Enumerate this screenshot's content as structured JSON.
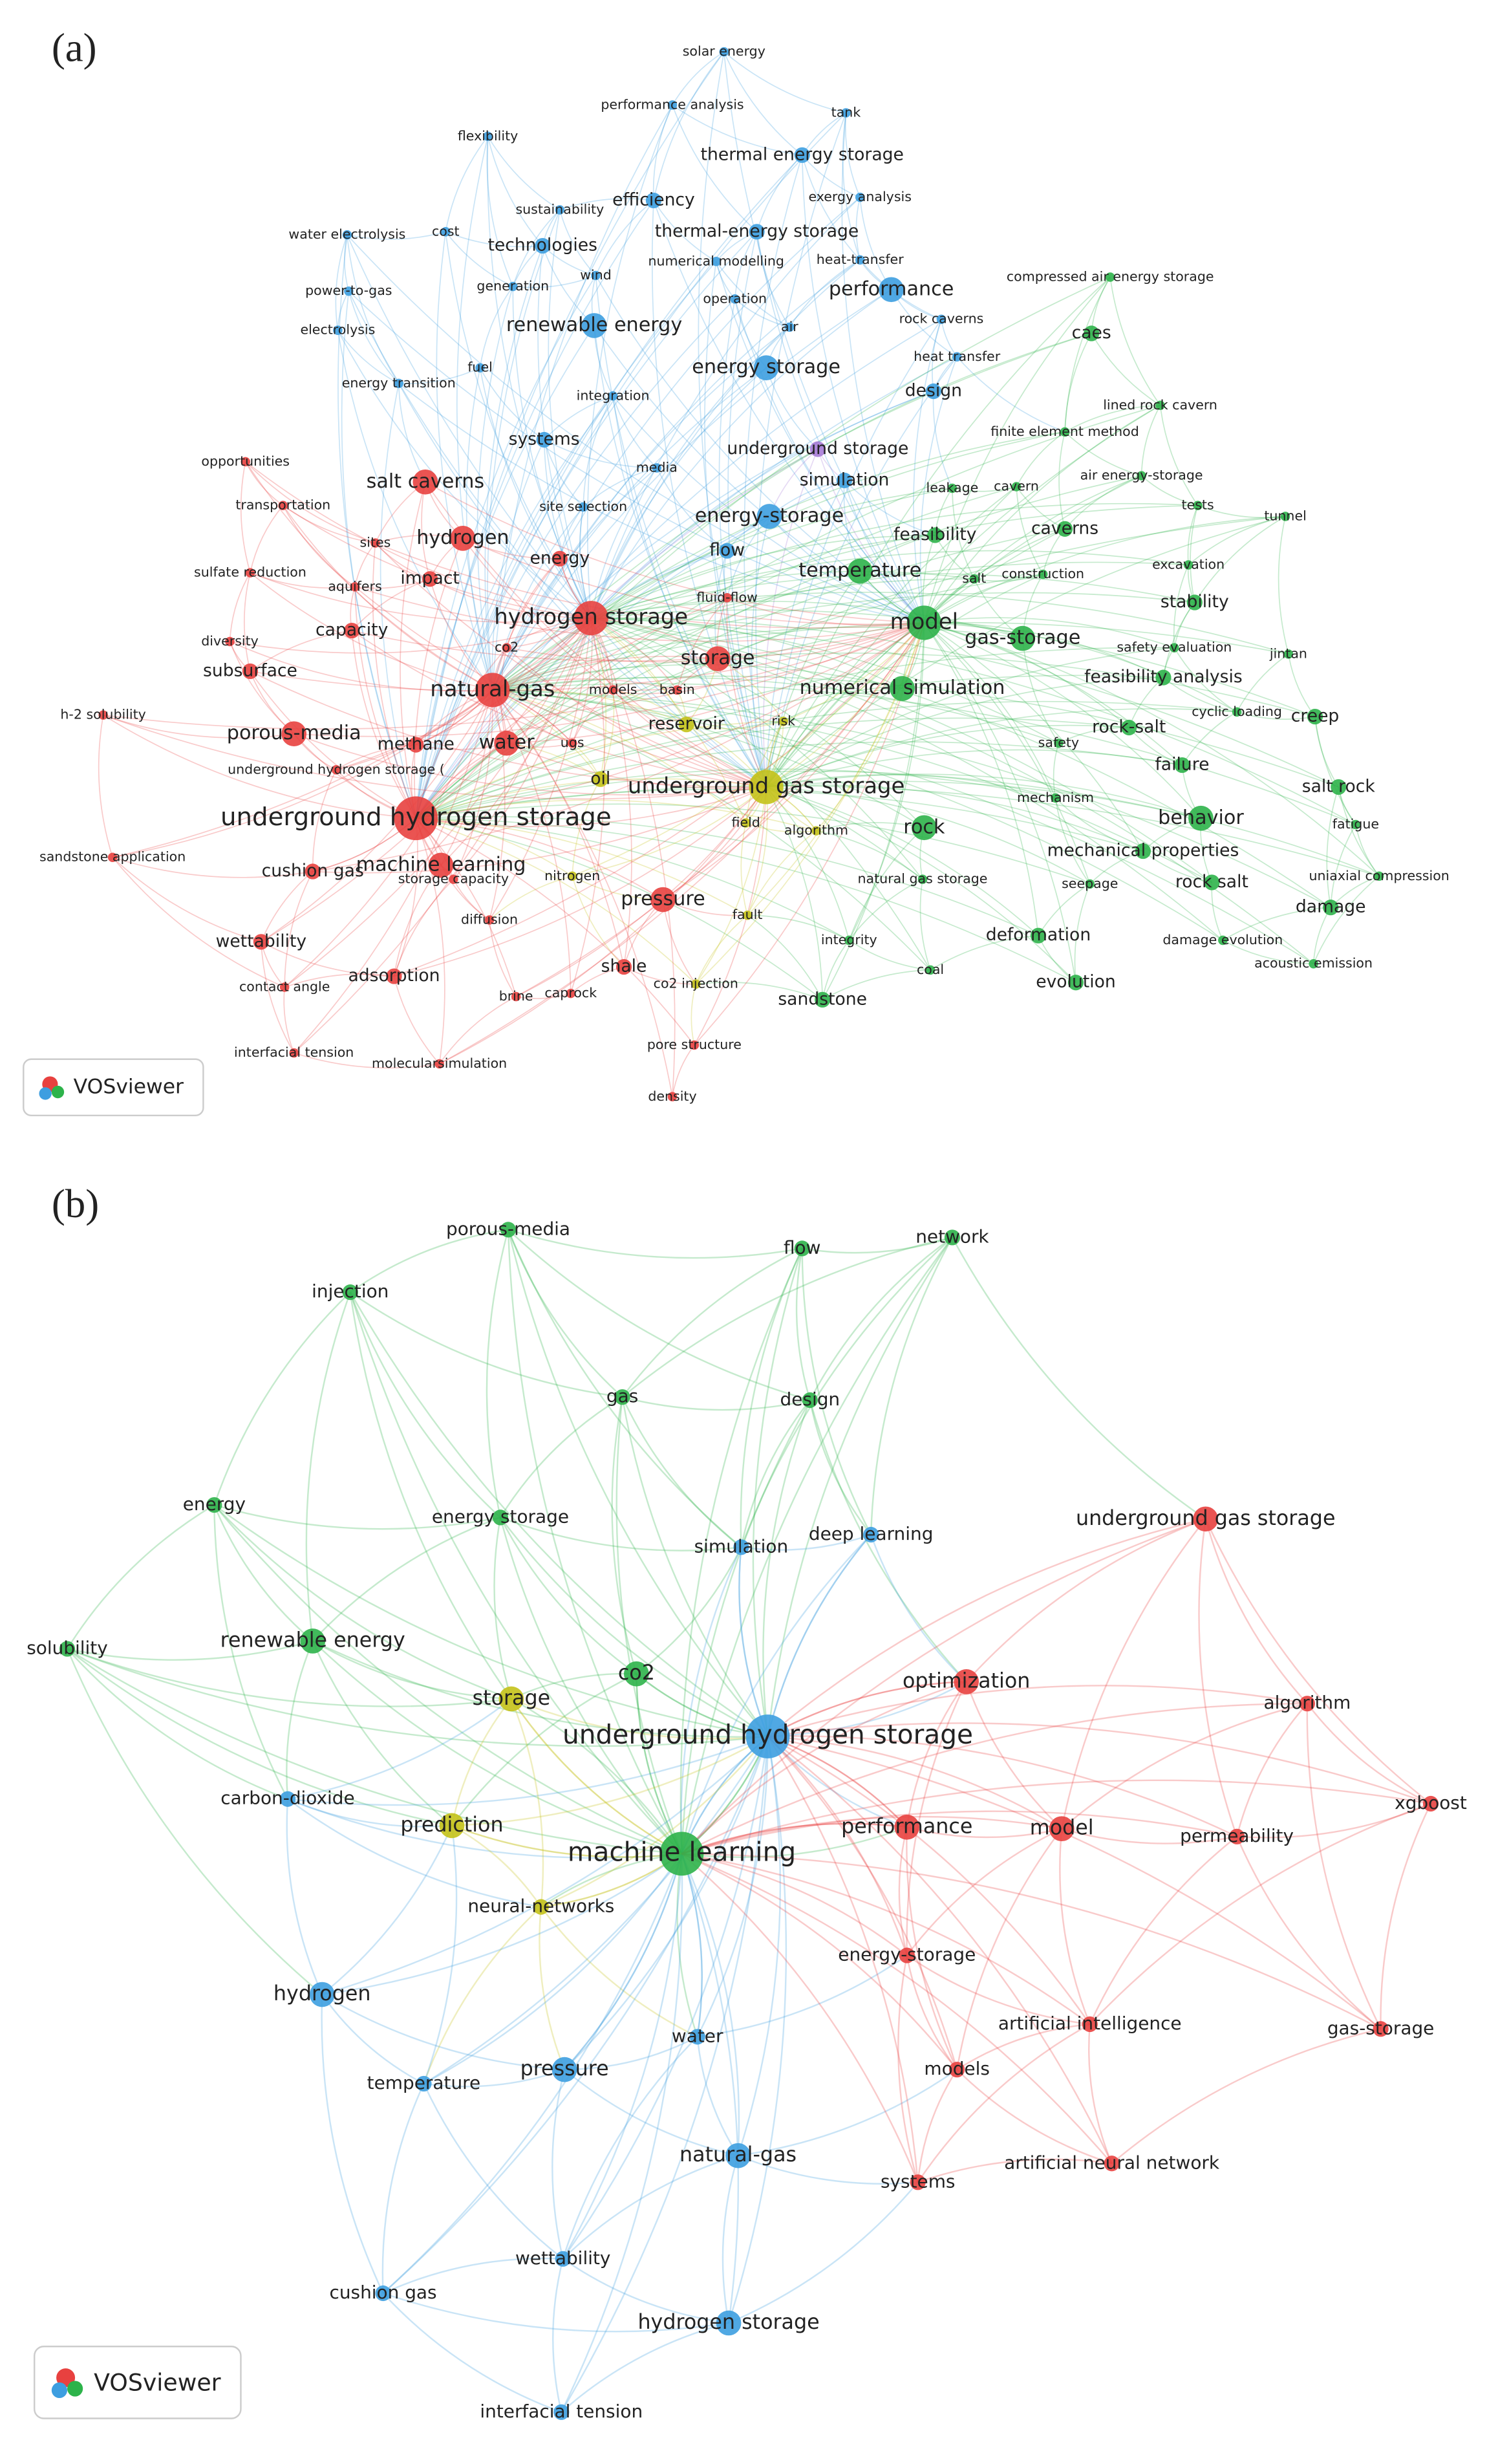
{
  "panels": [
    {
      "label": "(a)",
      "logo": "VOSviewer",
      "nodes": [
        {
          "label": "solar energy"
        },
        {
          "label": "performance analysis"
        },
        {
          "label": "tank"
        },
        {
          "label": "flexibility"
        },
        {
          "label": "thermal energy storage"
        },
        {
          "label": "exergy analysis"
        },
        {
          "label": "efficiency"
        },
        {
          "label": "sustainability"
        },
        {
          "label": "water electrolysis"
        },
        {
          "label": "cost"
        },
        {
          "label": "thermal-energy storage"
        },
        {
          "label": "technologies"
        },
        {
          "label": "numerical modelling"
        },
        {
          "label": "heat-transfer"
        },
        {
          "label": "power-to-gas"
        },
        {
          "label": "generation"
        },
        {
          "label": "wind"
        },
        {
          "label": "performance"
        },
        {
          "label": "operation"
        },
        {
          "label": "electrolysis"
        },
        {
          "label": "renewable energy"
        },
        {
          "label": "air"
        },
        {
          "label": "rock caverns"
        },
        {
          "label": "energy storage"
        },
        {
          "label": "heat transfer"
        },
        {
          "label": "design"
        },
        {
          "label": "energy transition"
        },
        {
          "label": "fuel"
        },
        {
          "label": "integration"
        },
        {
          "label": "systems"
        },
        {
          "label": "underground storage"
        },
        {
          "label": "media"
        },
        {
          "label": "simulation"
        },
        {
          "label": "site selection"
        },
        {
          "label": "energy-storage"
        },
        {
          "label": "flow"
        },
        {
          "label": "compressed air energy storage"
        },
        {
          "label": "caes"
        },
        {
          "label": "lined rock cavern"
        },
        {
          "label": "finite element method"
        },
        {
          "label": "air energy-storage"
        },
        {
          "label": "leakage"
        },
        {
          "label": "cavern"
        },
        {
          "label": "tests"
        },
        {
          "label": "tunnel"
        },
        {
          "label": "feasibility"
        },
        {
          "label": "caverns"
        },
        {
          "label": "excavation"
        },
        {
          "label": "temperature"
        },
        {
          "label": "salt"
        },
        {
          "label": "construction"
        },
        {
          "label": "stability"
        },
        {
          "label": "model"
        },
        {
          "label": "gas-storage"
        },
        {
          "label": "safety evaluation"
        },
        {
          "label": "jintan"
        },
        {
          "label": "feasibility analysis"
        },
        {
          "label": "numerical simulation"
        },
        {
          "label": "cyclic loading"
        },
        {
          "label": "creep"
        },
        {
          "label": "rock-salt"
        },
        {
          "label": "safety"
        },
        {
          "label": "failure"
        },
        {
          "label": "salt rock"
        },
        {
          "label": "mechanism"
        },
        {
          "label": "rock"
        },
        {
          "label": "behavior"
        },
        {
          "label": "fatigue"
        },
        {
          "label": "mechanical properties"
        },
        {
          "label": "natural gas storage"
        },
        {
          "label": "seepage"
        },
        {
          "label": "rock salt"
        },
        {
          "label": "uniaxial compression"
        },
        {
          "label": "damage"
        },
        {
          "label": "deformation"
        },
        {
          "label": "damage evolution"
        },
        {
          "label": "integrity"
        },
        {
          "label": "coal"
        },
        {
          "label": "evolution"
        },
        {
          "label": "acoustic emission"
        },
        {
          "label": "sandstone"
        },
        {
          "label": "oil"
        },
        {
          "label": "underground gas storage"
        },
        {
          "label": "reservoir"
        },
        {
          "label": "risk"
        },
        {
          "label": "field"
        },
        {
          "label": "algorithm"
        },
        {
          "label": "opportunities"
        },
        {
          "label": "salt caverns"
        },
        {
          "label": "transportation"
        },
        {
          "label": "hydrogen"
        },
        {
          "label": "energy"
        },
        {
          "label": "sites"
        },
        {
          "label": "sulfate reduction"
        },
        {
          "label": "aquifers"
        },
        {
          "label": "impact"
        },
        {
          "label": "fluid-flow"
        },
        {
          "label": "hydrogen storage"
        },
        {
          "label": "capacity"
        },
        {
          "label": "diversity"
        },
        {
          "label": "co2"
        },
        {
          "label": "storage"
        },
        {
          "label": "subsurface"
        },
        {
          "label": "natural-gas"
        },
        {
          "label": "models"
        },
        {
          "label": "basin"
        },
        {
          "label": "h-2 solubility"
        },
        {
          "label": "methane"
        },
        {
          "label": "water"
        },
        {
          "label": "ugs"
        },
        {
          "label": "porous-media"
        },
        {
          "label": "underground hydrogen storage ("
        },
        {
          "label": "underground hydrogen storage"
        },
        {
          "label": "sandstone application"
        },
        {
          "label": "cushion gas"
        },
        {
          "label": "storage capacity"
        },
        {
          "label": "nitrogen"
        },
        {
          "label": "machine learning"
        },
        {
          "label": "pressure"
        },
        {
          "label": "diffusion"
        },
        {
          "label": "fault"
        },
        {
          "label": "wettability"
        },
        {
          "label": "adsorption"
        },
        {
          "label": "shale"
        },
        {
          "label": "co2 injection"
        },
        {
          "label": "contact angle"
        },
        {
          "label": "brine"
        },
        {
          "label": "caprock"
        },
        {
          "label": "pore structure"
        },
        {
          "label": "interfacial tension"
        },
        {
          "label": "molecularsimulation"
        },
        {
          "label": "density"
        }
      ]
    },
    {
      "label": "(b)",
      "logo": "VOSviewer",
      "nodes": [
        {
          "label": "porous-media"
        },
        {
          "label": "flow"
        },
        {
          "label": "network"
        },
        {
          "label": "injection"
        },
        {
          "label": "gas"
        },
        {
          "label": "design"
        },
        {
          "label": "energy"
        },
        {
          "label": "energy storage"
        },
        {
          "label": "solubility"
        },
        {
          "label": "renewable energy"
        },
        {
          "label": "co2"
        },
        {
          "label": "machine learning"
        },
        {
          "label": "simulation"
        },
        {
          "label": "deep learning"
        },
        {
          "label": "underground hydrogen storage"
        },
        {
          "label": "carbon-dioxide"
        },
        {
          "label": "neural-networks"
        },
        {
          "label": "hydrogen"
        },
        {
          "label": "temperature"
        },
        {
          "label": "pressure"
        },
        {
          "label": "water"
        },
        {
          "label": "natural-gas"
        },
        {
          "label": "wettability"
        },
        {
          "label": "cushion gas"
        },
        {
          "label": "hydrogen storage"
        },
        {
          "label": "interfacial tension"
        },
        {
          "label": "storage"
        },
        {
          "label": "prediction"
        },
        {
          "label": "underground gas storage"
        },
        {
          "label": "optimization"
        },
        {
          "label": "algorithm"
        },
        {
          "label": "performance"
        },
        {
          "label": "model"
        },
        {
          "label": "permeability"
        },
        {
          "label": "xgboost"
        },
        {
          "label": "energy-storage"
        },
        {
          "label": "artificial intelligence"
        },
        {
          "label": "gas-storage"
        },
        {
          "label": "models"
        },
        {
          "label": "artificial neural network"
        },
        {
          "label": "systems"
        }
      ]
    }
  ]
}
